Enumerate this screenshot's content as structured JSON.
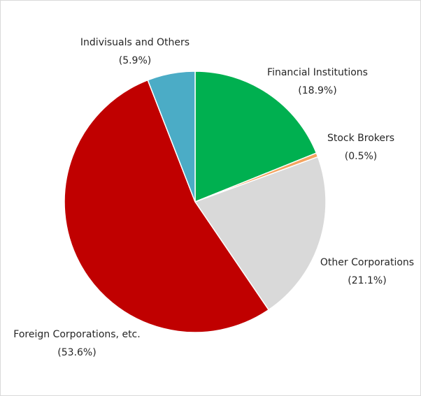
{
  "chart_data": {
    "type": "pie",
    "title": "",
    "start_angle_deg": 0,
    "direction": "clockwise",
    "slices": [
      {
        "label": "Financial Institutions",
        "percent_label": "(18.9%)",
        "value": 18.9,
        "color": "#00b050"
      },
      {
        "label": "Stock Brokers",
        "percent_label": "(0.5%)",
        "value": 0.5,
        "color": "#f4a460"
      },
      {
        "label": "Other Corporations",
        "percent_label": "(21.1%)",
        "value": 21.1,
        "color": "#d9d9d9"
      },
      {
        "label": "Foreign Corporations, etc.",
        "percent_label": "(53.6%)",
        "value": 53.6,
        "color": "#c00000"
      },
      {
        "label": "Indivisuals and Others",
        "percent_label": "(5.9%)",
        "value": 5.9,
        "color": "#4bacc6"
      }
    ],
    "slice_border_color": "#ffffff",
    "legend": "none"
  }
}
